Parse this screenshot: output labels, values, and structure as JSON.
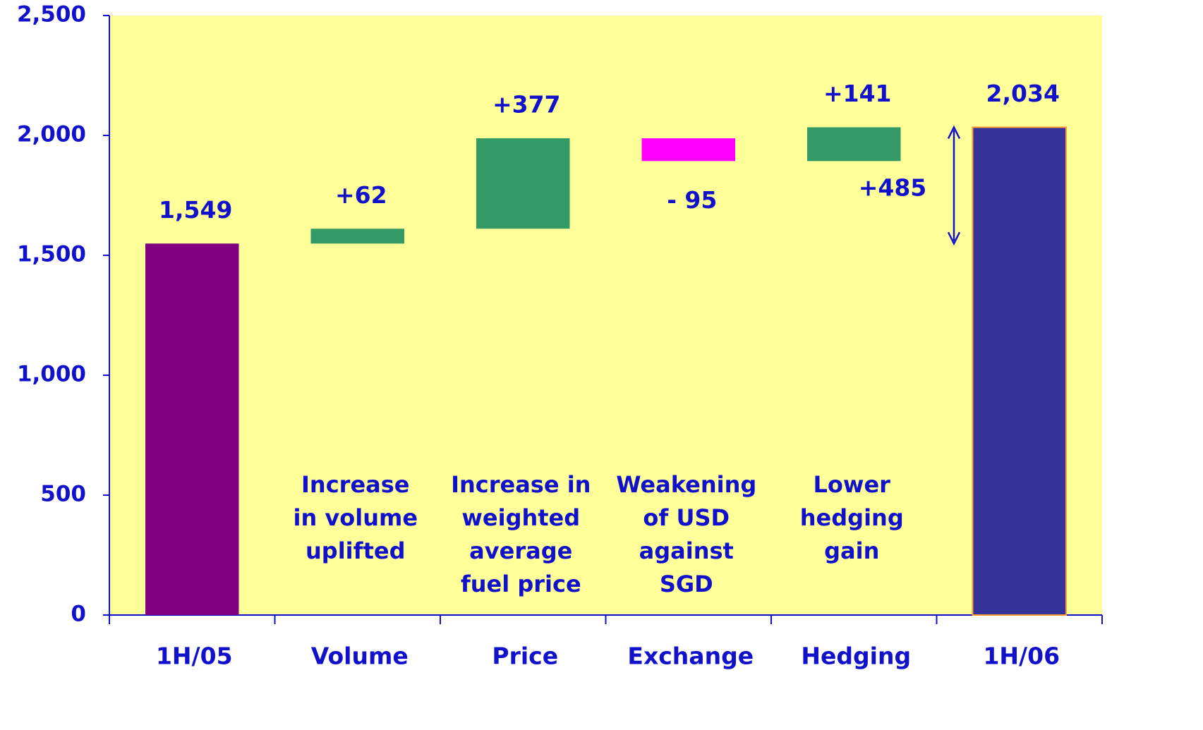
{
  "chart_data": {
    "type": "waterfall",
    "categories": [
      "1H/05",
      "Volume",
      "Price",
      "Exchange",
      "Hedging",
      "1H/06"
    ],
    "values": [
      1549,
      62,
      377,
      -95,
      141,
      2034
    ],
    "value_labels": [
      "1,549",
      "+62",
      "+377",
      "- 95",
      "+141",
      "2,034"
    ],
    "measure": [
      "absolute",
      "relative",
      "relative",
      "relative",
      "relative",
      "absolute"
    ],
    "colors": [
      "#800080",
      "#339966",
      "#339966",
      "#ff00ff",
      "#339966",
      "#333399"
    ],
    "descriptions": [
      null,
      [
        "Increase",
        "in volume",
        "uplifted"
      ],
      [
        "Increase in",
        "weighted",
        "average",
        "fuel price"
      ],
      [
        "Weakening",
        "of USD",
        "against",
        "SGD"
      ],
      [
        "Lower",
        "hedging",
        "gain"
      ],
      null
    ],
    "annotation": "+485",
    "ylim": [
      0,
      2500
    ],
    "yticks": [
      0,
      500,
      {
        "value": 1000,
        "label": "1,000"
      },
      {
        "value": 1500,
        "label": "1,500"
      },
      {
        "value": 2000,
        "label": "2,000"
      },
      {
        "value": 2500,
        "label": "2,500"
      }
    ],
    "grid": false
  }
}
